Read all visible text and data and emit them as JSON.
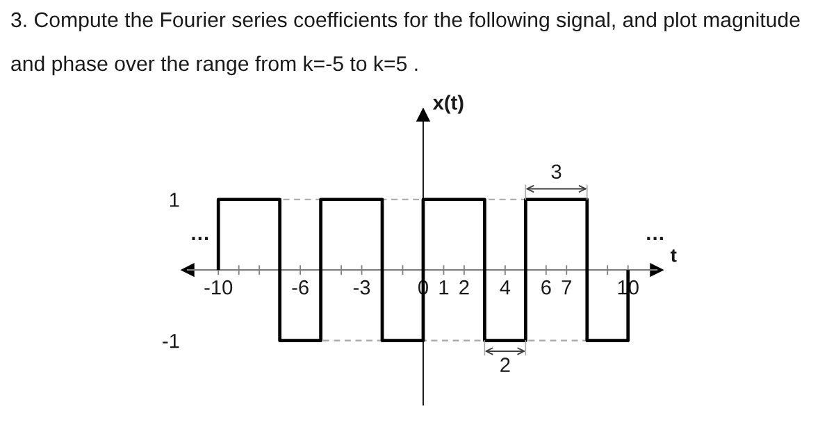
{
  "chart_data": {
    "type": "step",
    "title": "3. Compute the Fourier series coefficients for the following signal, and plot magnitude and phase over the range from k=-5 to k=5 .",
    "xlabel": "t",
    "ylabel": "x(t)",
    "x": [
      -10,
      -10,
      -7,
      -5,
      -2,
      0,
      3,
      5,
      8,
      10
    ],
    "values": [
      0,
      1,
      -1,
      1,
      -1,
      1,
      -1,
      1,
      -1,
      0
    ],
    "color": "#000000",
    "xlim": [
      -11.5,
      11.4
    ],
    "ylim": [
      -1.91,
      2.2
    ],
    "xticks": [
      -10,
      {
        "value": -9,
        "label": null
      },
      {
        "value": -8,
        "label": null
      },
      -6,
      {
        "value": -4,
        "label": null
      },
      -3,
      {
        "value": -1,
        "label": null
      },
      0,
      1,
      2,
      4,
      6,
      7,
      {
        "value": 9,
        "label": null
      },
      10
    ],
    "yticks": [
      -1,
      1
    ],
    "ref_lines": [
      {
        "axis": "y",
        "value": 1,
        "color": "#a6a6a6",
        "line_style": "dashed"
      },
      {
        "axis": "y",
        "value": -1,
        "color": "#a6a6a6",
        "line_style": "dashed"
      }
    ],
    "annotations": [
      {
        "text": "3",
        "x": 6.5,
        "y": 1
      },
      {
        "text": "2",
        "x": 4,
        "y": -1
      },
      "…",
      "…"
    ]
  }
}
